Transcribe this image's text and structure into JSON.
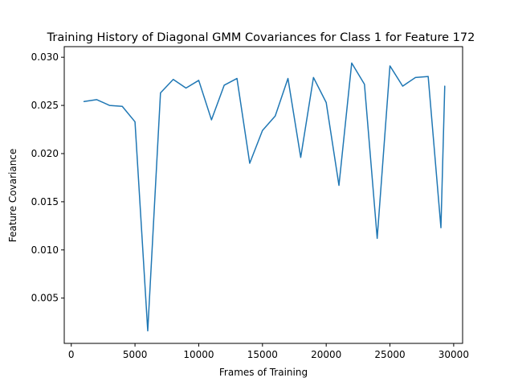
{
  "chart_data": {
    "type": "line",
    "title": "Training History of Diagonal GMM Covariances for Class 1 for Feature 172",
    "xlabel": "Frames of Training",
    "ylabel": "Feature Covariance",
    "xlim": [
      -550,
      30700
    ],
    "ylim": [
      0.0003,
      0.0311
    ],
    "xticks": [
      0,
      5000,
      10000,
      15000,
      20000,
      25000,
      30000
    ],
    "xtick_labels": [
      "0",
      "5000",
      "10000",
      "15000",
      "20000",
      "25000",
      "30000"
    ],
    "yticks": [
      0.005,
      0.01,
      0.015,
      0.02,
      0.025,
      0.03
    ],
    "ytick_labels": [
      "0.005",
      "0.010",
      "0.015",
      "0.020",
      "0.025",
      "0.030"
    ],
    "grid": false,
    "legend": "none",
    "series": [
      {
        "color": "#1f77b4",
        "x": [
          1000,
          2000,
          3000,
          4000,
          5000,
          6000,
          7000,
          8000,
          9000,
          10000,
          11000,
          12000,
          13000,
          14000,
          15000,
          16000,
          17000,
          18000,
          19000,
          20000,
          21000,
          22000,
          23000,
          24000,
          25000,
          26000,
          27000,
          28000,
          29000,
          29300
        ],
        "y": [
          0.0254,
          0.0256,
          0.025,
          0.0249,
          0.0233,
          0.0016,
          0.0263,
          0.0277,
          0.0268,
          0.0276,
          0.0235,
          0.0271,
          0.0278,
          0.019,
          0.0224,
          0.0239,
          0.0278,
          0.0196,
          0.0279,
          0.0253,
          0.0167,
          0.0294,
          0.0272,
          0.0112,
          0.0291,
          0.027,
          0.0279,
          0.028,
          0.0123,
          0.027
        ]
      }
    ]
  }
}
